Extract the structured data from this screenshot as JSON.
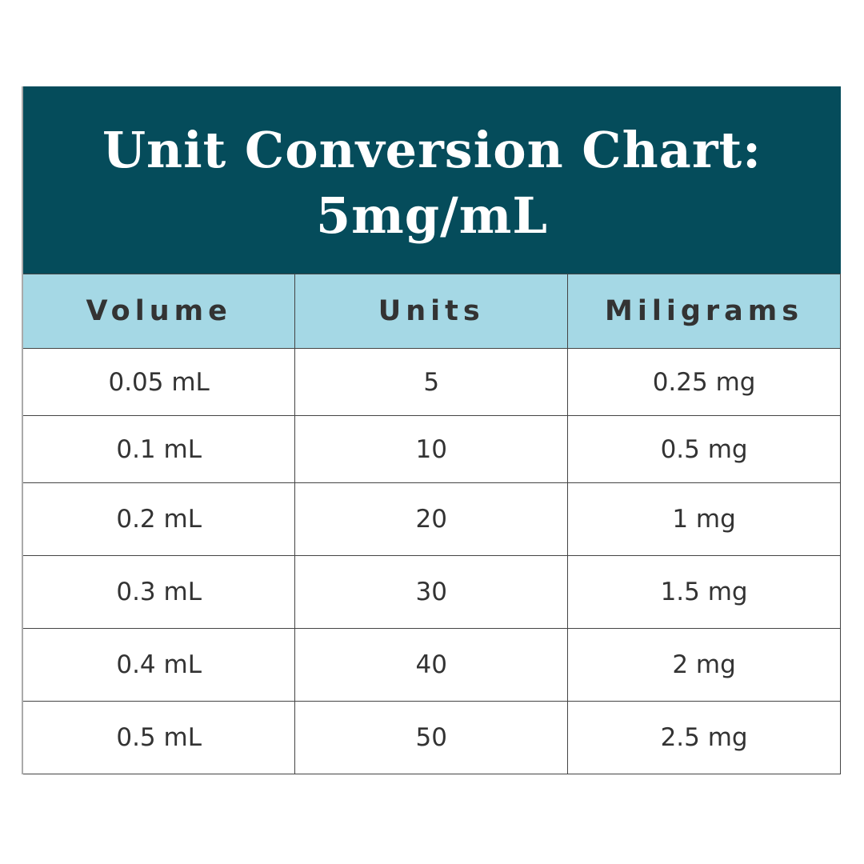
{
  "title_line1": "Unit Conversion Chart:",
  "title_line2": "5mg/mL",
  "colors": {
    "header_bg": "#054c5b",
    "column_header_bg": "#a5d8e5"
  },
  "columns": [
    "Volume",
    "Units",
    "Miligrams"
  ],
  "rows": [
    [
      "0.05 mL",
      "5",
      "0.25 mg"
    ],
    [
      "0.1 mL",
      "10",
      "0.5 mg"
    ],
    [
      "0.2 mL",
      "20",
      "1 mg"
    ],
    [
      "0.3 mL",
      "30",
      "1.5 mg"
    ],
    [
      "0.4 mL",
      "40",
      "2 mg"
    ],
    [
      "0.5 mL",
      "50",
      "2.5 mg"
    ]
  ]
}
